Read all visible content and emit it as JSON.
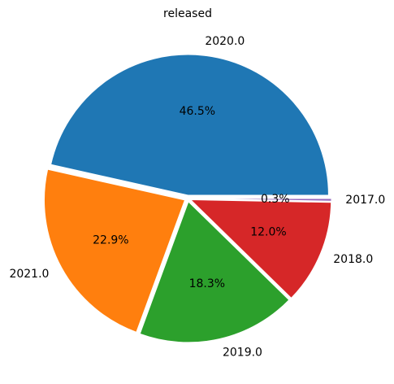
{
  "chart_data": {
    "type": "pie",
    "title": "released",
    "categories": [
      "2020.0",
      "2021.0",
      "2019.0",
      "2018.0",
      "2017.0"
    ],
    "values": [
      46.5,
      22.9,
      18.3,
      12.0,
      0.3
    ],
    "value_labels": [
      "46.5%",
      "22.9%",
      "18.3%",
      "12.0%",
      "0.3%"
    ],
    "colors": [
      "#1f77b4",
      "#ff7f0e",
      "#2ca02c",
      "#d62728",
      "#9467bd"
    ],
    "exploded": true,
    "start": "3 o'clock, counterclockwise",
    "legend": "none"
  }
}
